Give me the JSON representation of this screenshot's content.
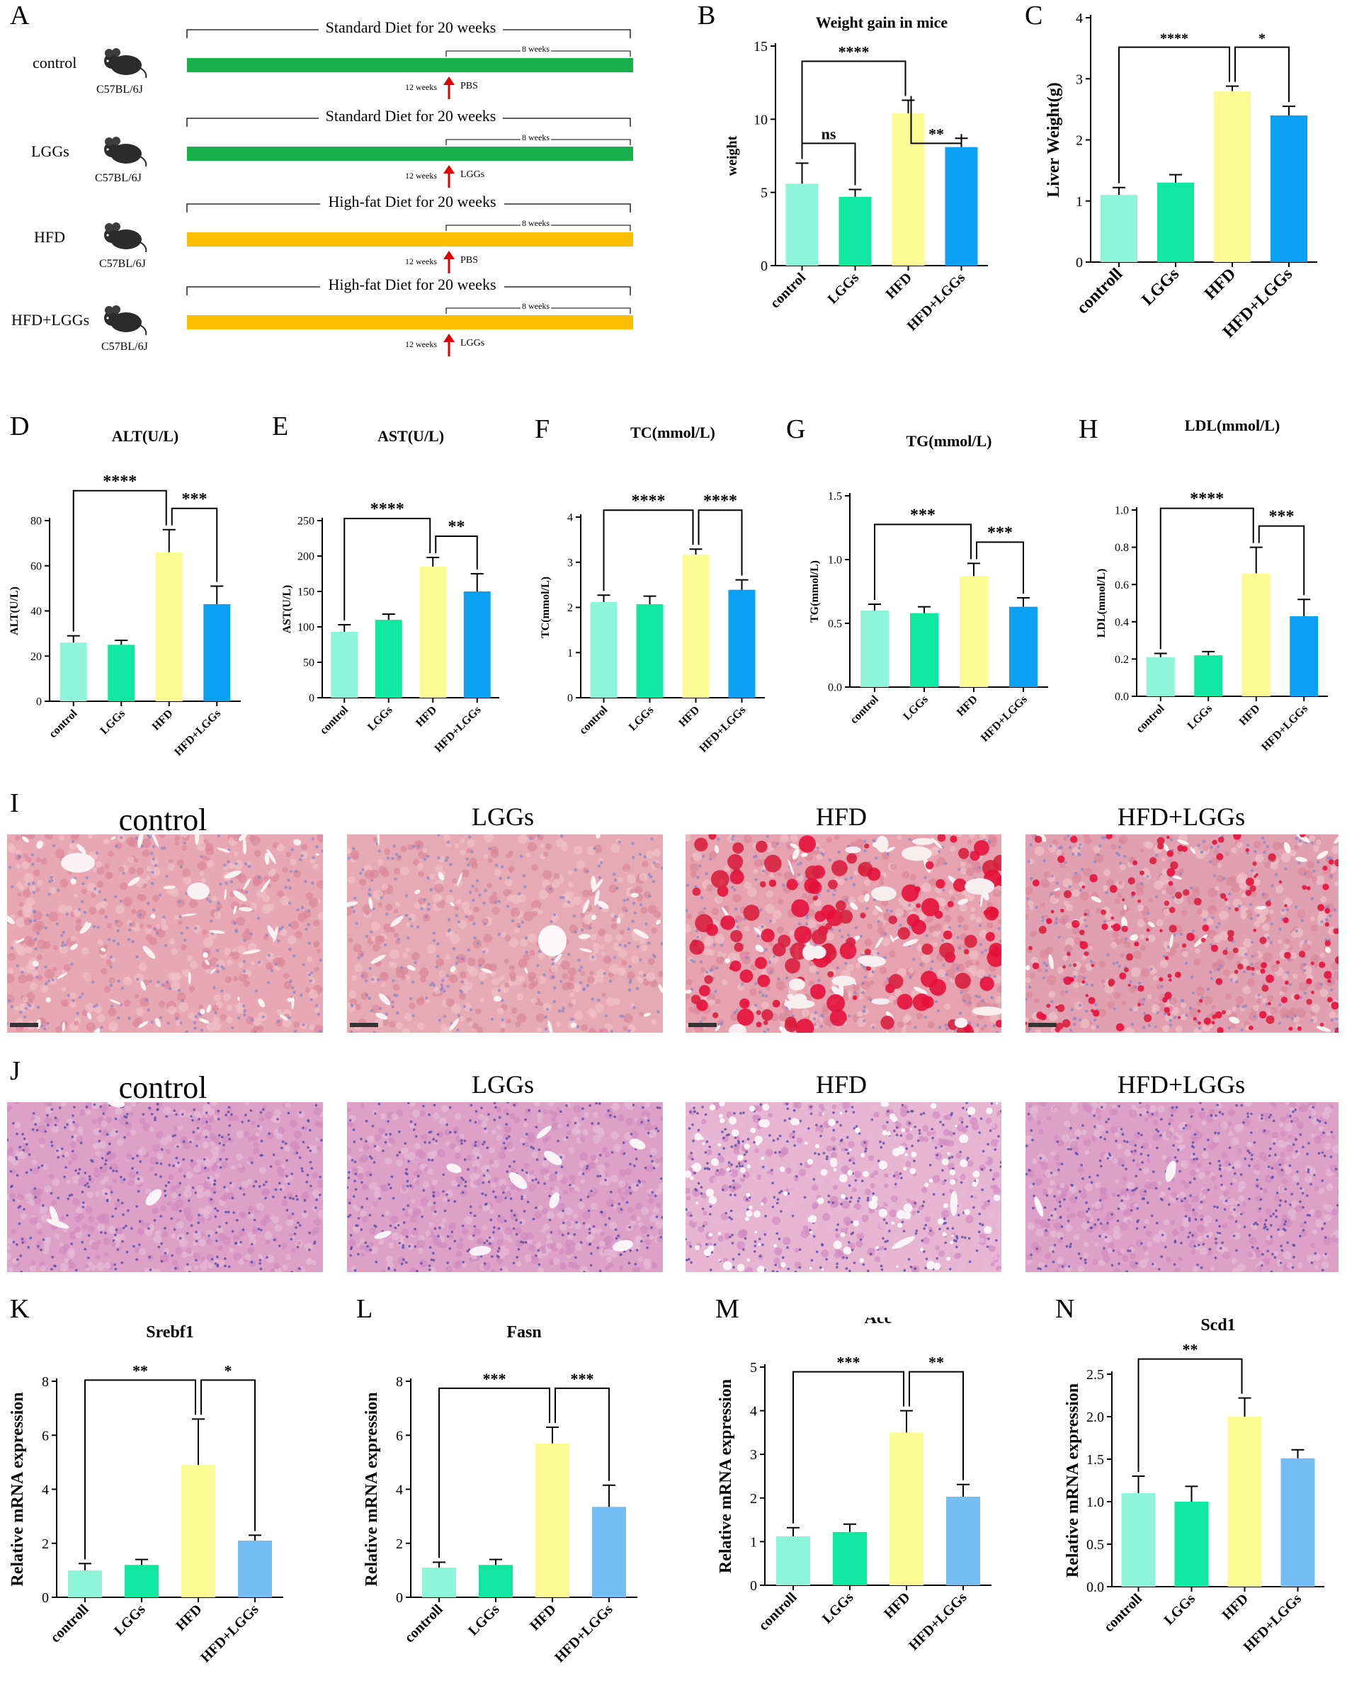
{
  "panel_labels": {
    "A": "A",
    "B": "B",
    "C": "C",
    "D": "D",
    "E": "E",
    "F": "F",
    "G": "G",
    "H": "H",
    "I": "I",
    "J": "J",
    "K": "K",
    "L": "L",
    "M": "M",
    "N": "N"
  },
  "design": {
    "rows": [
      {
        "group": "control",
        "strain": "C57BL/6J",
        "diet": "Standard Diet for 20 weeks",
        "weeks8": "8 weeks",
        "weeks12": "12 weeks",
        "treat": "PBS",
        "color": "#18b04a"
      },
      {
        "group": "LGGs",
        "strain": "C57BL/6J",
        "diet": "Standard Diet for 20 weeks",
        "weeks8": "8 weeks",
        "weeks12": "12 weeks",
        "treat": "LGGs",
        "color": "#18b04a"
      },
      {
        "group": "HFD",
        "strain": "C57BL/6J",
        "diet": "High-fat Diet for 20 weeks",
        "weeks8": "8 weeks",
        "weeks12": "12 weeks",
        "treat": "PBS",
        "color": "#fbbf00"
      },
      {
        "group": "HFD+LGGs",
        "strain": "C57BL/6J",
        "diet": "High-fat Diet for 20 weeks",
        "weeks8": "8 weeks",
        "weeks12": "12 weeks",
        "treat": "LGGs",
        "color": "#fbbf00"
      }
    ]
  },
  "colors": {
    "c1": "#8ff5d9",
    "c2": "#10e8a2",
    "c3": "#fdfc94",
    "c4": "#0aa1f5",
    "c4_light": "#74bdf5"
  },
  "chart_data": [
    {
      "id": "B",
      "type": "bar",
      "title": "Weight gain in mice",
      "ylabel": "weight",
      "categories": [
        "control",
        "LGGs",
        "HFD",
        "HFD+LGGs"
      ],
      "values": [
        5.6,
        4.7,
        10.4,
        8.1
      ],
      "errors": [
        1.4,
        0.5,
        0.9,
        0.6
      ],
      "ylim": [
        0,
        15
      ],
      "yticks": [
        0,
        5,
        10,
        15
      ],
      "sig": [
        {
          "a": 0,
          "b": 1,
          "label": "ns"
        },
        {
          "a": 0,
          "b": 2,
          "label": "****"
        },
        {
          "a": 2,
          "b": 3,
          "label": "**"
        }
      ]
    },
    {
      "id": "C",
      "type": "bar",
      "title": "",
      "ylabel": "Liver Weight(g)",
      "categories": [
        "controll",
        "LGGs",
        "HFD",
        "HFD+LGGs"
      ],
      "values": [
        1.1,
        1.3,
        2.8,
        2.4
      ],
      "errors": [
        0.12,
        0.13,
        0.08,
        0.15
      ],
      "ylim": [
        0,
        4
      ],
      "yticks": [
        0,
        1,
        2,
        3,
        4
      ],
      "sig": [
        {
          "a": 0,
          "b": 2,
          "label": "****"
        },
        {
          "a": 2,
          "b": 3,
          "label": "*"
        }
      ]
    },
    {
      "id": "D",
      "type": "bar",
      "title": "ALT(U/L)",
      "ylabel": "ALT(U/L)",
      "categories": [
        "control",
        "LGGs",
        "HFD",
        "HFD+LGGs"
      ],
      "values": [
        26,
        25,
        66,
        43
      ],
      "errors": [
        3,
        2,
        10,
        8
      ],
      "ylim": [
        0,
        80
      ],
      "yticks": [
        0,
        20,
        40,
        60,
        80
      ],
      "sig": [
        {
          "a": 0,
          "b": 2,
          "label": "****"
        },
        {
          "a": 2,
          "b": 3,
          "label": "***"
        }
      ]
    },
    {
      "id": "E",
      "type": "bar",
      "title": "AST(U/L)",
      "ylabel": "AST(U/L)",
      "categories": [
        "control",
        "LGGs",
        "HFD",
        "HFD+LGGs"
      ],
      "values": [
        93,
        110,
        185,
        150
      ],
      "errors": [
        10,
        8,
        13,
        25
      ],
      "ylim": [
        0,
        250
      ],
      "yticks": [
        0,
        50,
        100,
        150,
        200,
        250
      ],
      "sig": [
        {
          "a": 0,
          "b": 2,
          "label": "****"
        },
        {
          "a": 2,
          "b": 3,
          "label": "**"
        }
      ]
    },
    {
      "id": "F",
      "type": "bar",
      "title": "TC(mmol/L)",
      "ylabel": "TC(mmol/L)",
      "categories": [
        "control",
        "LGGs",
        "HFD",
        "HFD+LGGs"
      ],
      "values": [
        2.12,
        2.07,
        3.17,
        2.39
      ],
      "errors": [
        0.15,
        0.18,
        0.12,
        0.22
      ],
      "ylim": [
        0,
        4
      ],
      "yticks": [
        0,
        1,
        2,
        3,
        4
      ],
      "sig": [
        {
          "a": 0,
          "b": 2,
          "label": "****"
        },
        {
          "a": 2,
          "b": 3,
          "label": "****"
        }
      ]
    },
    {
      "id": "G",
      "type": "bar",
      "title": "TG(mmol/L)",
      "ylabel": "TG(mmol/L)",
      "categories": [
        "control",
        "LGGs",
        "HFD",
        "HFD+LGGs"
      ],
      "values": [
        0.6,
        0.58,
        0.87,
        0.63
      ],
      "errors": [
        0.05,
        0.05,
        0.1,
        0.07
      ],
      "ylim": [
        0,
        1.5
      ],
      "yticks": [
        0.0,
        0.5,
        1.0,
        1.5
      ],
      "sig": [
        {
          "a": 0,
          "b": 2,
          "label": "***"
        },
        {
          "a": 2,
          "b": 3,
          "label": "***"
        }
      ]
    },
    {
      "id": "H",
      "type": "bar",
      "title": "LDL(mmol/L)",
      "ylabel": "LDL(mmol/L)",
      "categories": [
        "control",
        "LGGs",
        "HFD",
        "HFD+LGGs"
      ],
      "values": [
        0.21,
        0.22,
        0.66,
        0.43
      ],
      "errors": [
        0.02,
        0.02,
        0.14,
        0.09
      ],
      "ylim": [
        0,
        1.0
      ],
      "yticks": [
        0.0,
        0.2,
        0.4,
        0.6,
        0.8,
        1.0
      ],
      "sig": [
        {
          "a": 0,
          "b": 2,
          "label": "****"
        },
        {
          "a": 2,
          "b": 3,
          "label": "***"
        }
      ]
    },
    {
      "id": "K",
      "type": "bar",
      "title": "Srebf1",
      "ylabel": "Relative mRNA expression",
      "categories": [
        "controll",
        "LGGs",
        "HFD",
        "HFD+LGGs"
      ],
      "values": [
        1.0,
        1.2,
        4.9,
        2.1
      ],
      "errors": [
        0.25,
        0.2,
        1.7,
        0.2
      ],
      "ylim": [
        0,
        8
      ],
      "yticks": [
        0,
        2,
        4,
        6,
        8
      ],
      "sig": [
        {
          "a": 0,
          "b": 2,
          "label": "**"
        },
        {
          "a": 2,
          "b": 3,
          "label": "*"
        }
      ]
    },
    {
      "id": "L",
      "type": "bar",
      "title": "Fasn",
      "ylabel": "Relative mRNA expression",
      "categories": [
        "controll",
        "LGGs",
        "HFD",
        "HFD+LGGs"
      ],
      "values": [
        1.1,
        1.2,
        5.7,
        3.35
      ],
      "errors": [
        0.2,
        0.2,
        0.6,
        0.8
      ],
      "ylim": [
        0,
        8
      ],
      "yticks": [
        0,
        2,
        4,
        6,
        8
      ],
      "sig": [
        {
          "a": 0,
          "b": 2,
          "label": "***"
        },
        {
          "a": 2,
          "b": 3,
          "label": "***"
        }
      ]
    },
    {
      "id": "M",
      "type": "bar",
      "title": "Acc",
      "ylabel": "Relative mRNA expression",
      "categories": [
        "controll",
        "LGGs",
        "HFD",
        "HFD+LGGs"
      ],
      "values": [
        1.12,
        1.22,
        3.5,
        2.03
      ],
      "errors": [
        0.2,
        0.18,
        0.5,
        0.28
      ],
      "ylim": [
        0,
        5
      ],
      "yticks": [
        0,
        1,
        2,
        3,
        4,
        5
      ],
      "sig": [
        {
          "a": 0,
          "b": 2,
          "label": "***"
        },
        {
          "a": 2,
          "b": 3,
          "label": "**"
        }
      ]
    },
    {
      "id": "N",
      "type": "bar",
      "title": "Scd1",
      "ylabel": "Relative mRNA expression",
      "categories": [
        "controll",
        "LGGs",
        "HFD",
        "HFD+LGGs"
      ],
      "values": [
        1.1,
        1.0,
        2.0,
        1.51
      ],
      "errors": [
        0.2,
        0.18,
        0.22,
        0.1
      ],
      "ylim": [
        0,
        2.5
      ],
      "yticks": [
        0.0,
        0.5,
        1.0,
        1.5,
        2.0,
        2.5
      ],
      "sig": [
        {
          "a": 0,
          "b": 2,
          "label": "**"
        }
      ]
    }
  ],
  "histology": {
    "oil_red": [
      "control",
      "LGGs",
      "HFD",
      "HFD+LGGs"
    ],
    "he": [
      "control",
      "LGGs",
      "HFD",
      "HFD+LGGs"
    ]
  }
}
